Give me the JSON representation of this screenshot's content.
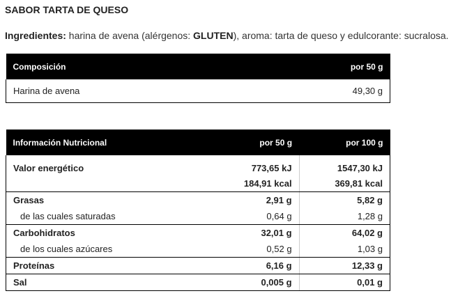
{
  "title": "SABOR TARTA DE QUESO",
  "ingredients": {
    "label": "Ingredientes:",
    "text1": " harina de avena (alérgenos: ",
    "allergen": "GLUTEN",
    "text2": "), aroma: tarta de queso y edulcorante: sucralosa."
  },
  "composition": {
    "header": [
      "Composición",
      "por 50 g"
    ],
    "rows": [
      [
        "Harina de avena",
        "49,30 g"
      ]
    ]
  },
  "nutrition": {
    "header": [
      "Información Nutricional",
      "por 50 g",
      "por 100 g"
    ],
    "rows": [
      {
        "name": "Valor energético",
        "v50": "773,65 kJ",
        "v100": "1547,30 kJ"
      },
      {
        "name": "",
        "v50": "184,91 kcal",
        "v100": "369,81 kcal"
      },
      {
        "name": "Grasas",
        "v50": "2,91 g",
        "v100": "5,82 g"
      },
      {
        "name": "de las cuales saturadas",
        "v50": "0,64 g",
        "v100": "1,28 g"
      },
      {
        "name": "Carbohidratos",
        "v50": "32,01 g",
        "v100": "64,02 g"
      },
      {
        "name": "de los cuales azúcares",
        "v50": "0,52 g",
        "v100": "1,03 g"
      },
      {
        "name": "Proteínas",
        "v50": "6,16 g",
        "v100": "12,33 g"
      },
      {
        "name": "Sal",
        "v50": "0,005 g",
        "v100": "0,01 g"
      }
    ]
  }
}
